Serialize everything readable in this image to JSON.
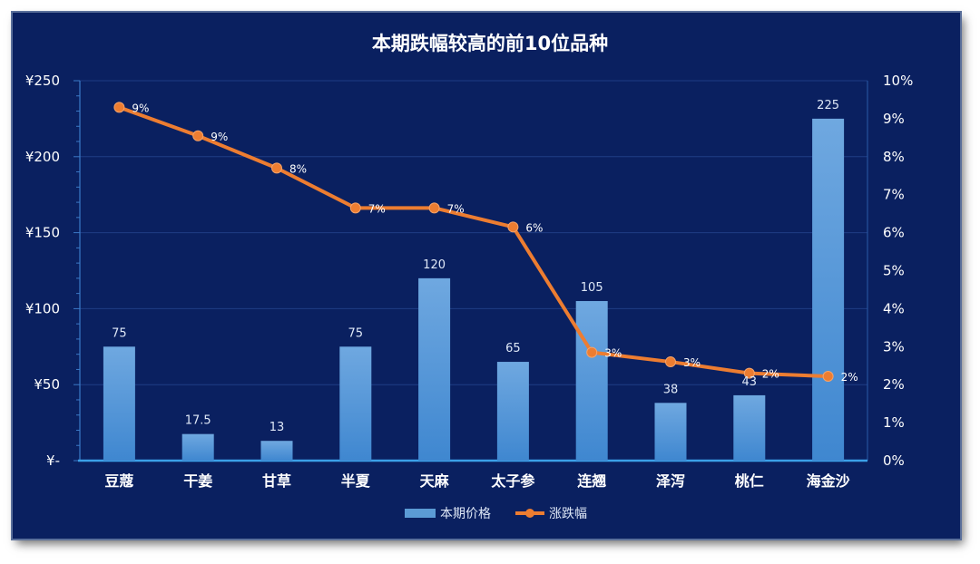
{
  "chart_data": {
    "type": "bar",
    "title": "本期跌幅较高的前10位品种",
    "categories": [
      "豆蔻",
      "干姜",
      "甘草",
      "半夏",
      "天麻",
      "太子参",
      "连翘",
      "泽泻",
      "桃仁",
      "海金沙"
    ],
    "series": [
      {
        "name": "本期价格",
        "type": "bar",
        "axis": "left",
        "values": [
          75,
          17.5,
          13,
          75,
          120,
          65,
          105,
          38,
          43,
          225
        ],
        "labels": [
          "75",
          "17.5",
          "13",
          "75",
          "120",
          "65",
          "105",
          "38",
          "43",
          "225"
        ],
        "color": "#5b9bd5"
      },
      {
        "name": "涨跌幅",
        "type": "line",
        "axis": "right",
        "values": [
          9.3,
          8.55,
          7.7,
          6.65,
          6.65,
          6.15,
          2.85,
          2.6,
          2.3,
          2.22
        ],
        "labels": [
          "9%",
          "9%",
          "8%",
          "7%",
          "7%",
          "6%",
          "3%",
          "3%",
          "2%",
          "2%"
        ],
        "color": "#ed7d31"
      }
    ],
    "y_left": {
      "range": [
        0,
        250
      ],
      "ticks": [
        0,
        50,
        100,
        150,
        200,
        250
      ],
      "tick_labels": [
        "¥-",
        "¥50",
        "¥100",
        "¥150",
        "¥200",
        "¥250"
      ]
    },
    "y_right": {
      "range": [
        0,
        10
      ],
      "ticks": [
        0,
        1,
        2,
        3,
        4,
        5,
        6,
        7,
        8,
        9,
        10
      ],
      "tick_labels": [
        "0%",
        "1%",
        "2%",
        "3%",
        "4%",
        "5%",
        "6%",
        "7%",
        "8%",
        "9%",
        "10%"
      ]
    },
    "grid": true,
    "legend": "bottom",
    "colors": {
      "background": "#0a2060",
      "grid": "#1f3d85",
      "bar": "#5b9bd5",
      "line": "#ed7d31"
    }
  }
}
